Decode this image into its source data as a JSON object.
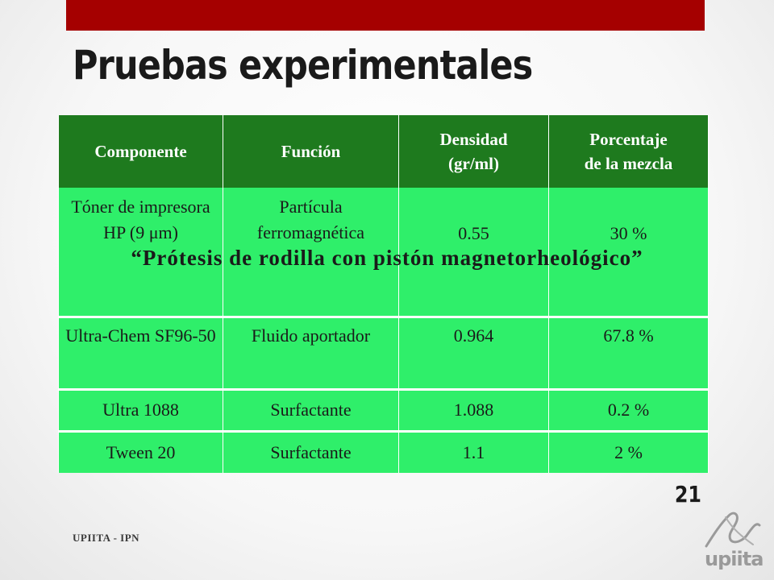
{
  "slide": {
    "title": "Pruebas experimentales",
    "overlay_text": "“Prótesis de rodilla con pistón magnetorheológico”",
    "page_number": "21",
    "footer": "UPIITA - IPN",
    "logo_text": "upiita"
  },
  "table": {
    "headers": [
      "Componente",
      "Función",
      "Densidad\n(gr/ml)",
      "Porcentaje\nde la mezcla"
    ],
    "rows": [
      [
        "Tóner de impresora HP (9 μm)",
        "Partícula ferromagnética",
        "0.55",
        "30 %"
      ],
      [
        "Ultra-Chem SF96-50",
        "Fluido aportador",
        "0.964",
        "67.8 %"
      ],
      [
        "Ultra 1088",
        "Surfactante",
        "1.088",
        "0.2 %"
      ],
      [
        "Tween 20",
        "Surfactante",
        "1.1",
        "2 %"
      ]
    ]
  },
  "colors": {
    "accent_bar": "#a50000",
    "header_green": "#1e7a1e",
    "cell_green": "#2fef6a"
  }
}
